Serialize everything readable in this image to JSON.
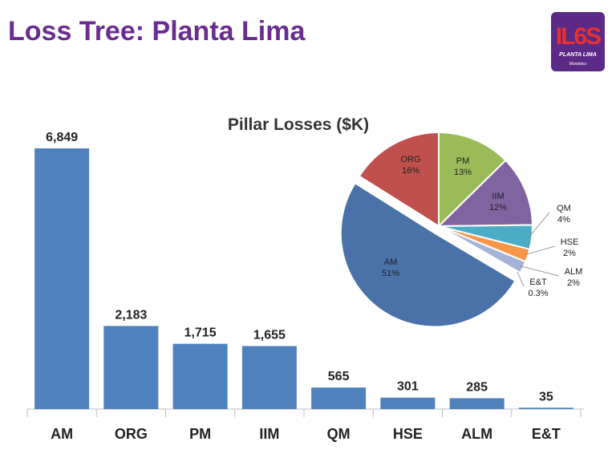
{
  "slide": {
    "title": "Loss Tree: Planta Lima"
  },
  "logo": {
    "main": "IL6S",
    "sub": "PLANTA LIMA",
    "brand": "Mondelez"
  },
  "chart_data": [
    {
      "type": "bar",
      "title": "Pillar Losses ($K)",
      "categories": [
        "AM",
        "ORG",
        "PM",
        "IIM",
        "QM",
        "HSE",
        "ALM",
        "E&T"
      ],
      "values": [
        6849,
        2183,
        1715,
        1655,
        565,
        301,
        285,
        35
      ],
      "value_labels": [
        "6,849",
        "2,183",
        "1,715",
        "1,655",
        "565",
        "301",
        "285",
        "35"
      ],
      "ylim": [
        0,
        6849
      ],
      "grid": false,
      "legend": "none",
      "color": "#4f81bd"
    },
    {
      "type": "pie",
      "labels": [
        "AM",
        "ORG",
        "PM",
        "IIM",
        "QM",
        "HSE",
        "ALM",
        "E&T"
      ],
      "percent_labels": [
        "51%",
        "16%",
        "13%",
        "12%",
        "4%",
        "2%",
        "2%",
        "0.3%"
      ],
      "values": [
        6849,
        2183,
        1715,
        1655,
        565,
        301,
        285,
        35
      ],
      "colors": [
        "#4a72a8",
        "#c0504d",
        "#9bbb59",
        "#8064a2",
        "#4bacc6",
        "#f79646",
        "#a5b3d8",
        "#3c5a87"
      ],
      "exploded": "AM"
    }
  ]
}
